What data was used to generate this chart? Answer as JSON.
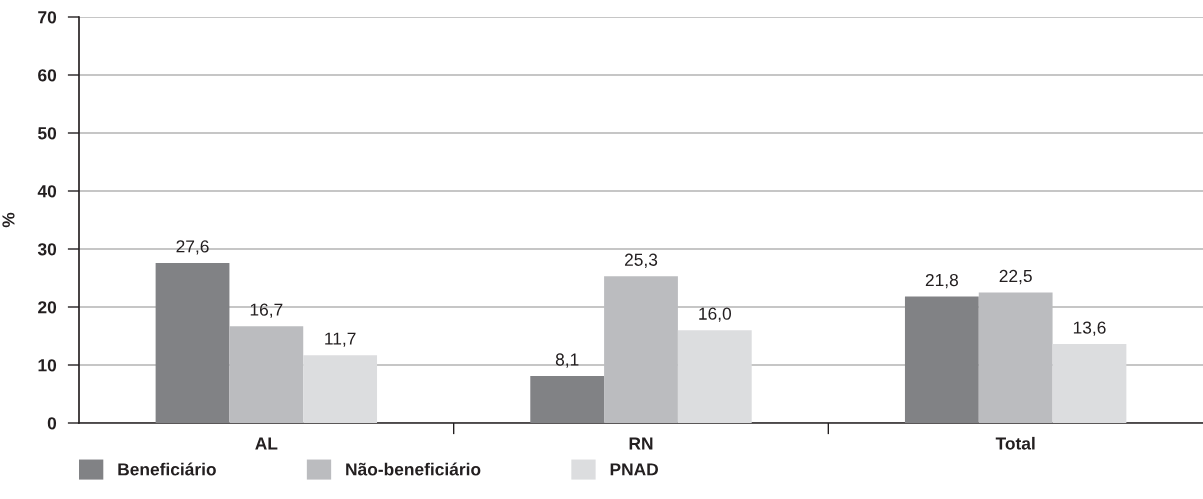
{
  "chart_data": {
    "type": "bar",
    "ylabel": "%",
    "categories": [
      "AL",
      "RN",
      "Total"
    ],
    "series": [
      {
        "name": "Beneficiário",
        "color": "#818285",
        "values": [
          27.6,
          8.1,
          21.8
        ],
        "value_labels": [
          "27,6",
          "8,1",
          "21,8"
        ]
      },
      {
        "name": "Não-beneficiário",
        "color": "#bbbcbf",
        "values": [
          16.7,
          25.3,
          22.5
        ],
        "value_labels": [
          "16,7",
          "25,3",
          "22,5"
        ]
      },
      {
        "name": "PNAD",
        "color": "#dcdddf",
        "values": [
          11.7,
          16.0,
          13.6
        ],
        "value_labels": [
          "11,7",
          "16,0",
          "13,6"
        ]
      }
    ],
    "ylim": [
      0,
      70
    ],
    "yticks": [
      0,
      10,
      20,
      30,
      40,
      50,
      60,
      70
    ],
    "grid": "y",
    "legend": "bottom left"
  }
}
